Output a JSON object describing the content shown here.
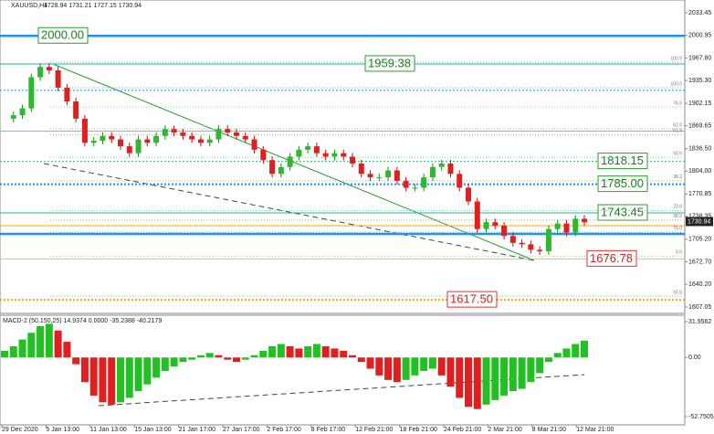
{
  "chart_data": {
    "type": "candlestick",
    "title": "XAUUSD,H4",
    "subtitle": "1728.94 1731.21 1727.15 1730.94",
    "current_price": 1730.94,
    "values": [
      1880,
      1885,
      1895,
      1940,
      1955,
      1950,
      1925,
      1905,
      1880,
      1845,
      1848,
      1855,
      1850,
      1840,
      1830,
      1850,
      1845,
      1855,
      1865,
      1860,
      1855,
      1850,
      1845,
      1850,
      1865,
      1860,
      1855,
      1850,
      1835,
      1820,
      1800,
      1810,
      1825,
      1835,
      1840,
      1830,
      1825,
      1830,
      1825,
      1815,
      1800,
      1795,
      1795,
      1805,
      1790,
      1780,
      1780,
      1795,
      1810,
      1815,
      1800,
      1780,
      1760,
      1720,
      1730,
      1725,
      1710,
      1700,
      1698,
      1690,
      1688,
      1720,
      1728,
      1715,
      1735,
      1730
    ],
    "ylim": [
      1597.8,
      2052
    ],
    "yticks": [
      {
        "value": 2033.45,
        "label": "2033.45"
      },
      {
        "value": 2000.95,
        "label": "2000.95"
      },
      {
        "value": 1967.8,
        "label": "1967.80"
      },
      {
        "value": 1935.3,
        "label": "1935.30"
      },
      {
        "value": 1902.15,
        "label": "1902.15"
      },
      {
        "value": 1869.65,
        "label": "1869.65"
      },
      {
        "value": 1836.5,
        "label": "1836.50"
      },
      {
        "value": 1804,
        "label": "1804.00"
      },
      {
        "value": 1770.85,
        "label": "1770.85"
      },
      {
        "value": 1738.35,
        "label": "1738.35"
      },
      {
        "value": 1705.2,
        "label": "1705.20"
      },
      {
        "value": 1672.7,
        "label": "1672.70"
      },
      {
        "value": 1640.2,
        "label": "1640.20"
      },
      {
        "value": 1607.05,
        "label": "1607.05"
      }
    ],
    "xlabels": [
      "29 Dec 2020",
      "5 Jan 13:00",
      "11 Jan 13:00",
      "15 Jan 13:00",
      "21 Jan 17:00",
      "27 Jan 17:00",
      "2 Feb 17:00",
      "8 Feb 17:00",
      "12 Feb 21:00",
      "18 Feb 21:00",
      "24 Feb 21:00",
      "2 Mar 21:00",
      "8 Mar 21:00",
      "12 Mar 21:00"
    ],
    "levels": [
      {
        "value": 2000,
        "label": "2000.00",
        "color": "#1e90ff",
        "style": "thick"
      },
      {
        "value": 1959.38,
        "label": "1959.38",
        "color": "#20b2aa",
        "style": "solid"
      },
      {
        "value": 1921,
        "color": "#1e90ff",
        "style": "dotted"
      },
      {
        "value": 1862,
        "color": "#ffa500",
        "style": "solid"
      },
      {
        "value": 1818.15,
        "label": "1818.15",
        "color": "#3cb371",
        "style": "dotted"
      },
      {
        "value": 1785,
        "label": "1785.00",
        "color": "#1e90ff",
        "style": "thickdotted"
      },
      {
        "value": 1743.45,
        "label": "1743.45",
        "color": "#20b2aa",
        "style": "solid"
      },
      {
        "value": 1725,
        "color": "#ffa500",
        "style": "solid"
      },
      {
        "value": 1713,
        "color": "#1e90ff",
        "style": "thick"
      },
      {
        "value": 1676.78,
        "label": "1676.78",
        "color": "#e6d200",
        "style": "solid"
      },
      {
        "value": 1617.5,
        "label": "1617.50",
        "color": "#ffa500",
        "style": "thickdotted"
      }
    ],
    "fib": [
      {
        "value": 1962,
        "label": "100.0"
      },
      {
        "value": 1924.9,
        "label": "100.0"
      },
      {
        "value": 1897,
        "label": "76.0"
      },
      {
        "value": 1865.3,
        "label": "62.0"
      },
      {
        "value": 1857,
        "label": "61.8"
      },
      {
        "value": 1824,
        "label": "50.0"
      },
      {
        "value": 1790,
        "label": "38.2"
      },
      {
        "value": 1747,
        "label": "23.0"
      },
      {
        "value": 1733,
        "label": "38.2"
      },
      {
        "value": 1715.7,
        "label": "76.0"
      },
      {
        "value": 1681,
        "label": "0.0"
      },
      {
        "value": 1623,
        "label": "50.0"
      }
    ],
    "macd": {
      "title": "MACD-2 (50,150,25) 14.9374 0.0000 -35.2388 -40.2179",
      "ylim": [
        -60.08,
        37.66
      ],
      "yticks": [
        {
          "value": 31.9562,
          "label": "31.9562"
        },
        {
          "value": 0,
          "label": "0.00"
        },
        {
          "value": -52.7505,
          "label": "-52.7505"
        }
      ],
      "values": [
        6,
        10,
        16,
        22,
        28,
        30,
        24,
        14,
        -6,
        -22,
        -34,
        -40,
        -42,
        -40,
        -36,
        -30,
        -24,
        -18,
        -12,
        -8,
        -4,
        -2,
        2,
        4,
        2,
        -2,
        -4,
        -2,
        2,
        6,
        10,
        12,
        10,
        8,
        10,
        12,
        10,
        8,
        6,
        2,
        -4,
        -10,
        -16,
        -20,
        -22,
        -20,
        -16,
        -12,
        -10,
        -16,
        -26,
        -36,
        -44,
        -46,
        -42,
        -38,
        -34,
        -30,
        -28,
        -22,
        -14,
        -4,
        4,
        8,
        12,
        15
      ]
    }
  }
}
